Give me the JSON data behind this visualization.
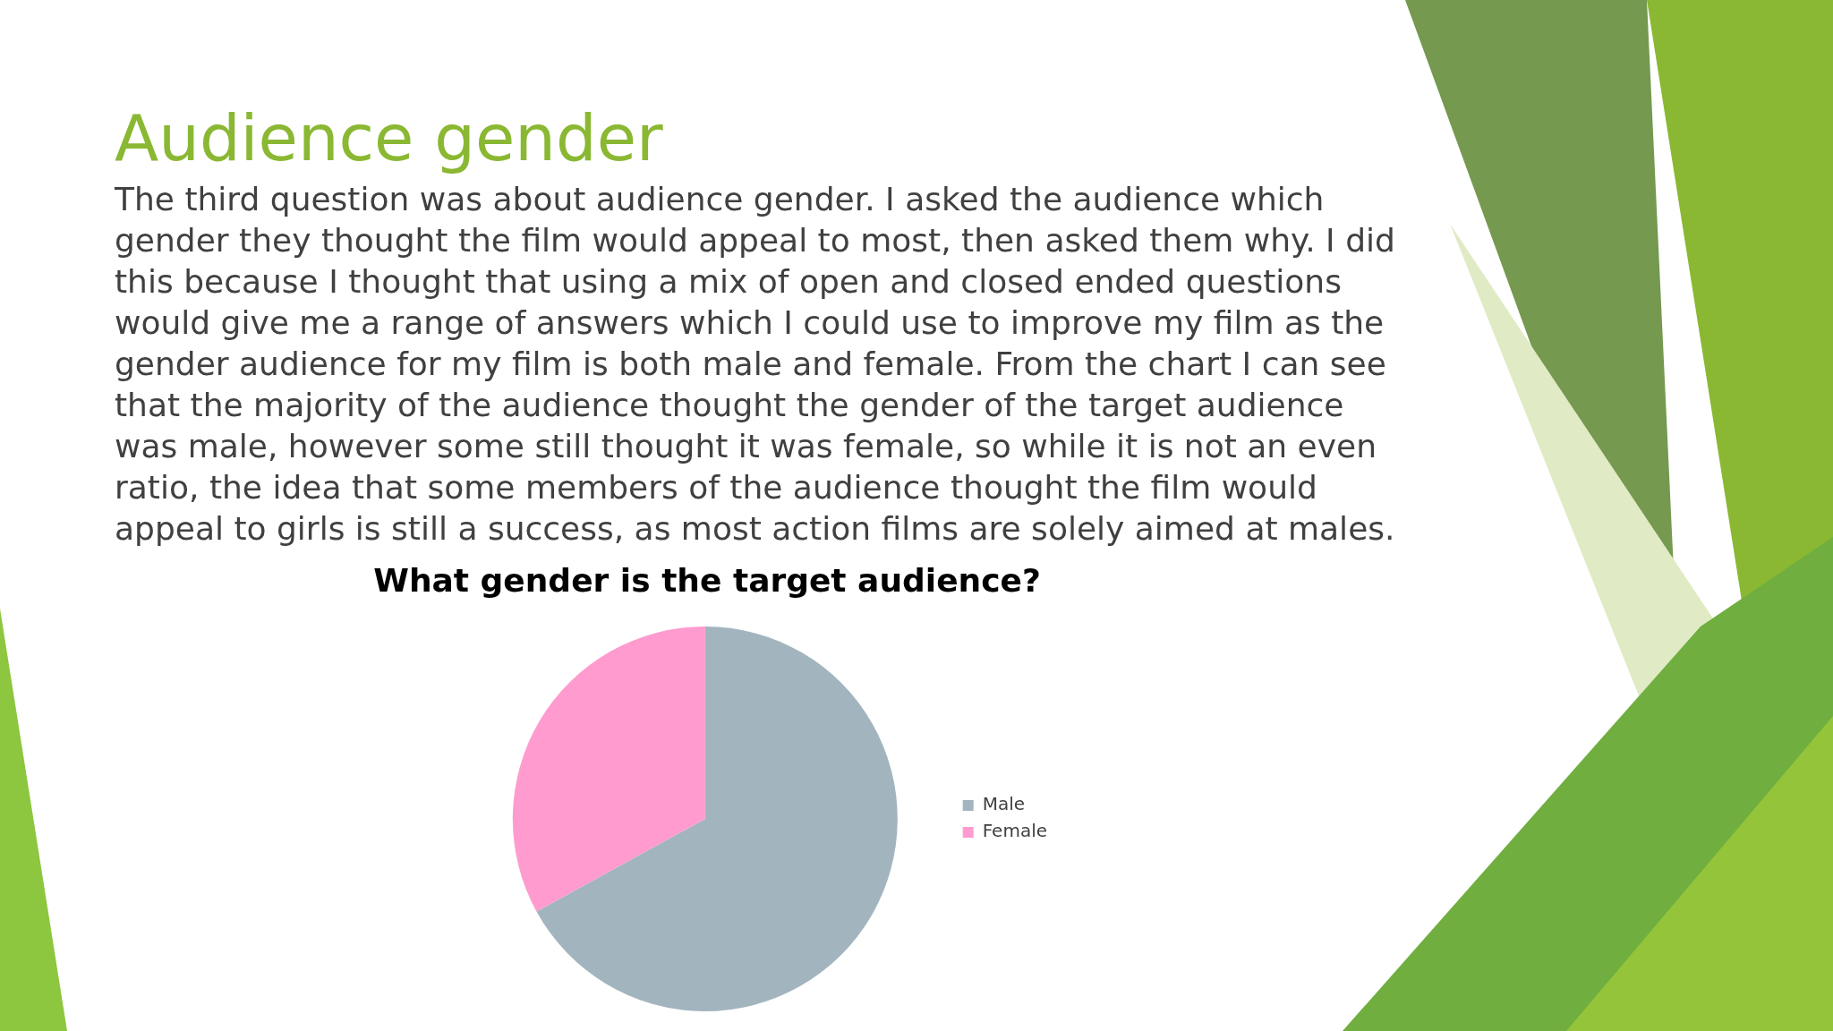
{
  "chart_data": {
    "type": "pie",
    "title": "Audience gender",
    "subtitle": "The third question was about audience gender. I asked the audience which gender they thought the film would appeal to most, then asked them why. I did this because I thought that using a mix of open and closed ended questions would give me a range of answers which I could use to improve my film as the gender audience for my film is both male and female.  From the chart I can see that the majority of the audience thought the gender of the target audience was male, however some still thought it was female, so while it is not an even ratio, the idea that some members of the audience thought the film would appeal to girls is still a success, as most action films are solely aimed at males.",
    "annotations": [
      "What gender is the target audience?"
    ],
    "categories": [
      "Male",
      "Female"
    ],
    "values": [
      67,
      33
    ],
    "colors": [
      "#a2b5bf",
      "#ff9bcf"
    ],
    "legend": "right"
  }
}
